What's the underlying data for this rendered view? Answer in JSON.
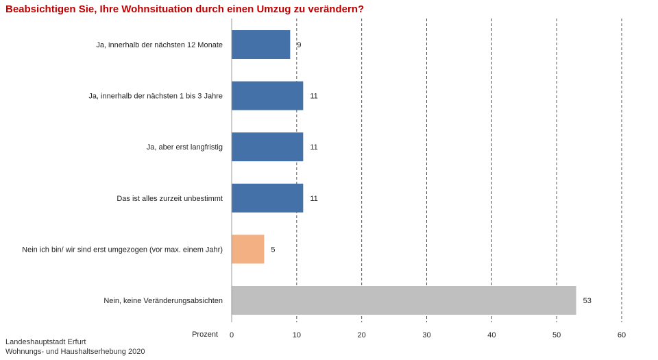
{
  "title": "Beabsichtigen Sie, Ihre Wohnsituation durch einen Umzug zu verändern?",
  "source": {
    "line1": "Landeshauptstadt Erfurt",
    "line2": "Wohnungs- und Haushaltserhebung 2020"
  },
  "chart_data": {
    "type": "bar",
    "orientation": "horizontal",
    "categories": [
      "Ja, innerhalb der nächsten 12 Monate",
      "Ja, innerhalb der nächsten 1 bis 3 Jahre",
      "Ja, aber erst langfristig",
      "Das ist alles zurzeit unbestimmt",
      "Nein ich bin/ wir sind erst umgezogen (vor max. einem Jahr)",
      "Nein, keine Veränderungsabsichten"
    ],
    "values": [
      9,
      11,
      11,
      11,
      5,
      53
    ],
    "value_labels": [
      "9",
      "11",
      "11",
      "11",
      "5",
      "53"
    ],
    "colors": [
      "#4472a8",
      "#4472a8",
      "#4472a8",
      "#4472a8",
      "#f3b083",
      "#bfbfbf"
    ],
    "xlabel": "Prozent",
    "xlim": [
      0,
      60
    ],
    "xticks": [
      0,
      10,
      20,
      30,
      40,
      50,
      60
    ],
    "grid": "vertical dashed"
  }
}
